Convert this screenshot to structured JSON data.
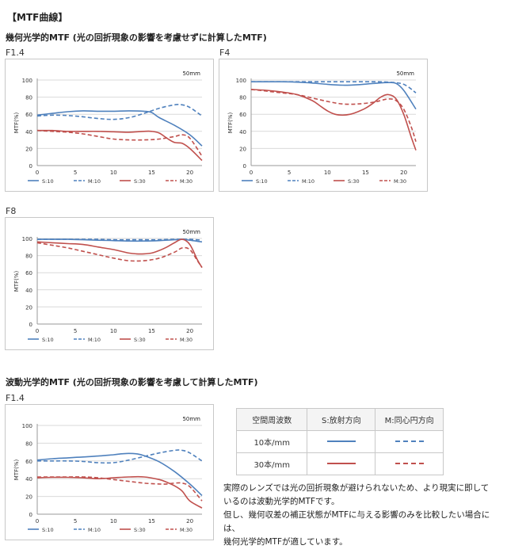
{
  "page": {
    "heading": "【MTF曲線】",
    "geo_title": "幾何光学的MTF (光の回折現象の影響を考慮せずに計算したMTF)",
    "wave_title": "波動光学的MTF (光の回折現象の影響を考慮して計算したMTF)",
    "note_lines": [
      "実際のレンズでは光の回折現象が避けられないため、より現実に即して",
      "いるのは波動光学的MTFです。",
      "但し、幾何収差の補正状態がMTFに与える影響のみを比較したい場合には、",
      "幾何光学的MTFが適しています。"
    ]
  },
  "colors": {
    "blue": "#4f81bd",
    "red": "#c0504d"
  },
  "legend_labels": {
    "s10": "S:10",
    "m10": "M:10",
    "s30": "S:30",
    "m30": "M:30"
  },
  "table": {
    "headers": [
      "空間周波数",
      "S:放射方向",
      "M:同心円方向"
    ],
    "rows": [
      {
        "freq": "10本/mm",
        "color": "#4f81bd"
      },
      {
        "freq": "30本/mm",
        "color": "#c0504d"
      }
    ]
  },
  "chart_data": [
    {
      "type": "line",
      "fnum": "F1.4",
      "focal_label": "50mm",
      "ylabel": "MTF(%)",
      "ylim": [
        0,
        100
      ],
      "xlim": [
        0,
        21.6
      ],
      "xticks": [
        0,
        5,
        10,
        15,
        20
      ],
      "yticks": [
        0,
        20,
        40,
        60,
        80,
        100
      ],
      "series": [
        {
          "name": "S:10",
          "color": "#4f81bd",
          "dash": false,
          "x": [
            0,
            2,
            4,
            6,
            8,
            10,
            12,
            14,
            15,
            16,
            18,
            20,
            21.6
          ],
          "y": [
            59,
            61,
            63,
            64,
            63.5,
            63.5,
            64,
            63.5,
            62,
            56,
            47,
            36,
            23
          ]
        },
        {
          "name": "M:10",
          "color": "#4f81bd",
          "dash": true,
          "x": [
            0,
            2,
            4,
            6,
            8,
            10,
            12,
            14,
            16,
            18,
            19,
            20,
            21.6
          ],
          "y": [
            58,
            59,
            58.5,
            57,
            55,
            54,
            56,
            61,
            67,
            71,
            71,
            68,
            58
          ]
        },
        {
          "name": "S:30",
          "color": "#c0504d",
          "dash": false,
          "x": [
            0,
            2,
            4,
            6,
            8,
            10,
            12,
            14,
            15,
            16,
            17,
            18,
            19,
            20,
            21.6
          ],
          "y": [
            41,
            41,
            40,
            40,
            40,
            39.5,
            39,
            40,
            40,
            38,
            32,
            27,
            26,
            20,
            6
          ]
        },
        {
          "name": "M:30",
          "color": "#c0504d",
          "dash": true,
          "x": [
            0,
            2,
            4,
            6,
            8,
            10,
            12,
            14,
            16,
            18,
            19,
            20,
            21.6
          ],
          "y": [
            41,
            40,
            39,
            37,
            34,
            31,
            30,
            30,
            31,
            34,
            36,
            32,
            11
          ]
        }
      ]
    },
    {
      "type": "line",
      "fnum": "F4",
      "focal_label": "50mm",
      "ylabel": "MTF(%)",
      "ylim": [
        0,
        100
      ],
      "xlim": [
        0,
        21.6
      ],
      "xticks": [
        0,
        5,
        10,
        15,
        20
      ],
      "yticks": [
        0,
        20,
        40,
        60,
        80,
        100
      ],
      "series": [
        {
          "name": "S:10",
          "color": "#4f81bd",
          "dash": false,
          "x": [
            0,
            2,
            4,
            6,
            8,
            10,
            12,
            14,
            16,
            18,
            19,
            20,
            21.6
          ],
          "y": [
            98,
            98,
            98,
            97.5,
            96.5,
            95,
            94,
            94.5,
            96,
            97,
            96,
            88,
            66
          ]
        },
        {
          "name": "M:10",
          "color": "#4f81bd",
          "dash": true,
          "x": [
            0,
            2,
            4,
            6,
            8,
            10,
            12,
            14,
            16,
            18,
            20,
            21.6
          ],
          "y": [
            98,
            98,
            98,
            98,
            98,
            98,
            98,
            98,
            98,
            97.5,
            95,
            85
          ]
        },
        {
          "name": "S:30",
          "color": "#c0504d",
          "dash": false,
          "x": [
            0,
            2,
            4,
            6,
            8,
            9,
            10,
            11,
            12,
            13,
            14,
            15,
            16,
            17,
            18,
            19,
            20,
            21,
            21.6
          ],
          "y": [
            89,
            88,
            86,
            83,
            76,
            70,
            64,
            60,
            59,
            60,
            63,
            67,
            73,
            80,
            83,
            78,
            60,
            33,
            18
          ]
        },
        {
          "name": "M:30",
          "color": "#c0504d",
          "dash": true,
          "x": [
            0,
            2,
            4,
            6,
            8,
            10,
            12,
            14,
            16,
            17,
            18,
            19,
            20,
            21,
            21.6
          ],
          "y": [
            89,
            87,
            85,
            83,
            79,
            75,
            72,
            72,
            74,
            76,
            78,
            76,
            66,
            45,
            28
          ]
        }
      ]
    },
    {
      "type": "line",
      "fnum": "F8",
      "focal_label": "50mm",
      "ylabel": "MTF(%)",
      "ylim": [
        0,
        100
      ],
      "xlim": [
        0,
        21.6
      ],
      "xticks": [
        0,
        5,
        10,
        15,
        20
      ],
      "yticks": [
        0,
        20,
        40,
        60,
        80,
        100
      ],
      "series": [
        {
          "name": "S:10",
          "color": "#4f81bd",
          "dash": false,
          "x": [
            0,
            2,
            4,
            6,
            8,
            10,
            12,
            14,
            16,
            18,
            19,
            20,
            21.6
          ],
          "y": [
            99,
            99,
            99,
            98.5,
            98,
            97.5,
            97,
            97,
            97.5,
            98.5,
            99,
            98,
            96
          ]
        },
        {
          "name": "M:10",
          "color": "#4f81bd",
          "dash": true,
          "x": [
            0,
            2,
            4,
            6,
            8,
            10,
            12,
            14,
            16,
            18,
            20,
            21.6
          ],
          "y": [
            99,
            99,
            99,
            99,
            99,
            98.5,
            98.5,
            98.5,
            98.5,
            99,
            99,
            98
          ]
        },
        {
          "name": "S:30",
          "color": "#c0504d",
          "dash": false,
          "x": [
            0,
            2,
            4,
            6,
            8,
            10,
            12,
            13,
            14,
            15,
            16,
            17,
            18,
            19,
            20,
            21,
            21.6
          ],
          "y": [
            96,
            95,
            94,
            93,
            90,
            87,
            83,
            82,
            82,
            83,
            86,
            90,
            95,
            99,
            93,
            75,
            66
          ]
        },
        {
          "name": "M:30",
          "color": "#c0504d",
          "dash": true,
          "x": [
            0,
            2,
            4,
            6,
            8,
            10,
            12,
            14,
            16,
            18,
            19,
            20,
            21,
            21.6
          ],
          "y": [
            95,
            92,
            89,
            85,
            81,
            77,
            74,
            74,
            77,
            84,
            89,
            87,
            74,
            66
          ]
        }
      ]
    },
    {
      "type": "line",
      "fnum": "F1.4",
      "focal_label": "50mm",
      "ylabel": "MTF(%)",
      "ylim": [
        0,
        100
      ],
      "xlim": [
        0,
        21.6
      ],
      "xticks": [
        0,
        5,
        10,
        15,
        20
      ],
      "yticks": [
        0,
        20,
        40,
        60,
        80,
        100
      ],
      "series": [
        {
          "name": "S:10",
          "color": "#4f81bd",
          "dash": false,
          "x": [
            0,
            2,
            4,
            6,
            8,
            10,
            11,
            12,
            13,
            14,
            16,
            18,
            20,
            21.6
          ],
          "y": [
            61,
            62.5,
            63.5,
            64.5,
            65.5,
            67,
            68,
            68.5,
            68,
            66,
            59,
            48,
            34,
            21
          ]
        },
        {
          "name": "M:10",
          "color": "#4f81bd",
          "dash": true,
          "x": [
            0,
            2,
            4,
            6,
            8,
            10,
            12,
            14,
            16,
            18,
            19,
            20,
            21.6
          ],
          "y": [
            60,
            60,
            60,
            59.5,
            58,
            58,
            61,
            65,
            69,
            72,
            72,
            69,
            60
          ]
        },
        {
          "name": "S:30",
          "color": "#c0504d",
          "dash": false,
          "x": [
            0,
            2,
            4,
            6,
            8,
            10,
            12,
            14,
            16,
            17,
            18,
            19,
            20,
            21.6
          ],
          "y": [
            41,
            41.5,
            41.5,
            41,
            40,
            41,
            42,
            42,
            39,
            36,
            32,
            26,
            15,
            7
          ]
        },
        {
          "name": "M:30",
          "color": "#c0504d",
          "dash": true,
          "x": [
            0,
            2,
            4,
            6,
            8,
            10,
            12,
            14,
            16,
            17,
            18,
            19,
            20,
            21.6
          ],
          "y": [
            42,
            42,
            42,
            42,
            41,
            39,
            37,
            35,
            34,
            34,
            35,
            35,
            31,
            15
          ]
        }
      ]
    }
  ]
}
